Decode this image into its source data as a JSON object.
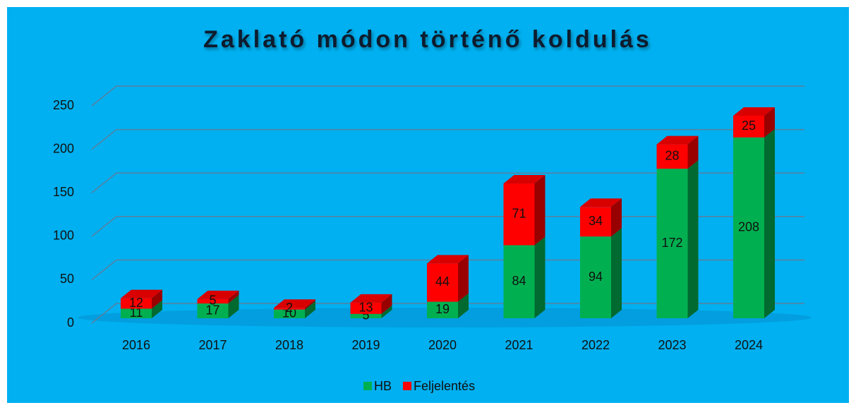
{
  "chart_data": {
    "type": "bar3d_stacked",
    "title": "Zaklató módon történő koldulás",
    "categories": [
      "2016",
      "2017",
      "2018",
      "2019",
      "2020",
      "2021",
      "2022",
      "2023",
      "2024"
    ],
    "series": [
      {
        "name": "HB",
        "color": "#00b050",
        "values": [
          11,
          17,
          10,
          5,
          19,
          84,
          94,
          172,
          208
        ]
      },
      {
        "name": "Feljelentés",
        "color": "#ff0000",
        "values": [
          12,
          5,
          2,
          13,
          44,
          71,
          34,
          28,
          25
        ]
      }
    ],
    "ylim": [
      0,
      250
    ],
    "yticks": [
      0,
      50,
      100,
      150,
      200,
      250
    ],
    "grid": true,
    "legend": "bottom"
  }
}
